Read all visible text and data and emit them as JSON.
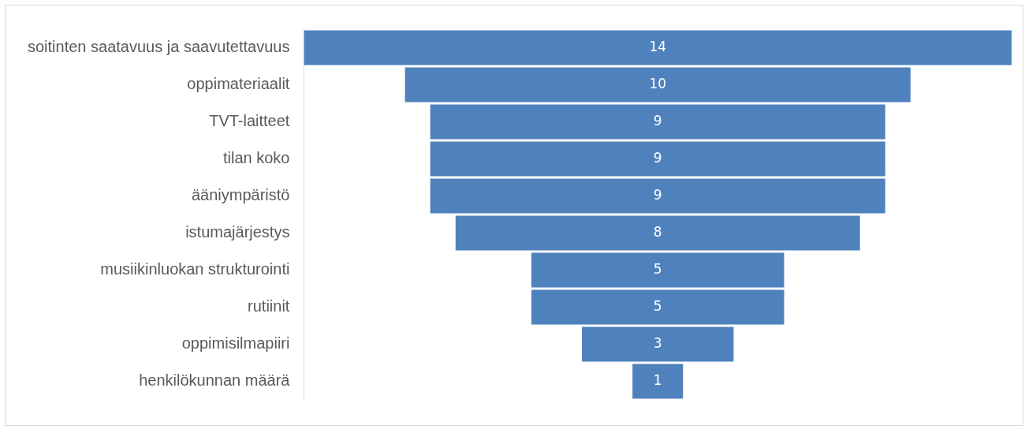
{
  "chart_data": {
    "type": "other",
    "categories": [
      "soitinten saatavuus ja saavutettavuus",
      "oppimateriaalit",
      "TVT-laitteet",
      "tilan koko",
      "ääniympäristö",
      "istumajärjestys",
      "musiikinluokan strukturointi",
      "rutiinit",
      "oppimisilmapiiri",
      "henkilökunnan määrä"
    ],
    "values": [
      14,
      10,
      9,
      9,
      9,
      8,
      5,
      5,
      3,
      1
    ],
    "color": "#4f81bd",
    "data_labels": true
  }
}
